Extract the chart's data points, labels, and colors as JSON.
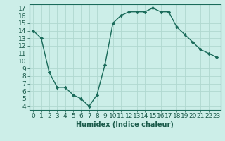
{
  "x": [
    0,
    1,
    2,
    3,
    4,
    5,
    6,
    7,
    8,
    9,
    10,
    11,
    12,
    13,
    14,
    15,
    16,
    17,
    18,
    19,
    20,
    21,
    22,
    23
  ],
  "y": [
    14,
    13,
    8.5,
    6.5,
    6.5,
    5.5,
    5.0,
    4.0,
    5.5,
    9.5,
    15.0,
    16.0,
    16.5,
    16.5,
    16.5,
    17.0,
    16.5,
    16.5,
    14.5,
    13.5,
    12.5,
    11.5,
    11.0,
    10.5
  ],
  "line_color": "#1a6b5a",
  "marker": "D",
  "markersize": 2.2,
  "linewidth": 1.0,
  "xlabel": "Humidex (Indice chaleur)",
  "bg_color": "#cceee8",
  "grid_color": "#b0d8d0",
  "xlim": [
    -0.5,
    23.5
  ],
  "ylim": [
    3.5,
    17.5
  ],
  "yticks": [
    4,
    5,
    6,
    7,
    8,
    9,
    10,
    11,
    12,
    13,
    14,
    15,
    16,
    17
  ],
  "xticks": [
    0,
    1,
    2,
    3,
    4,
    5,
    6,
    7,
    8,
    9,
    10,
    11,
    12,
    13,
    14,
    15,
    16,
    17,
    18,
    19,
    20,
    21,
    22,
    23
  ],
  "xlabel_fontsize": 7,
  "tick_fontsize": 6.5
}
